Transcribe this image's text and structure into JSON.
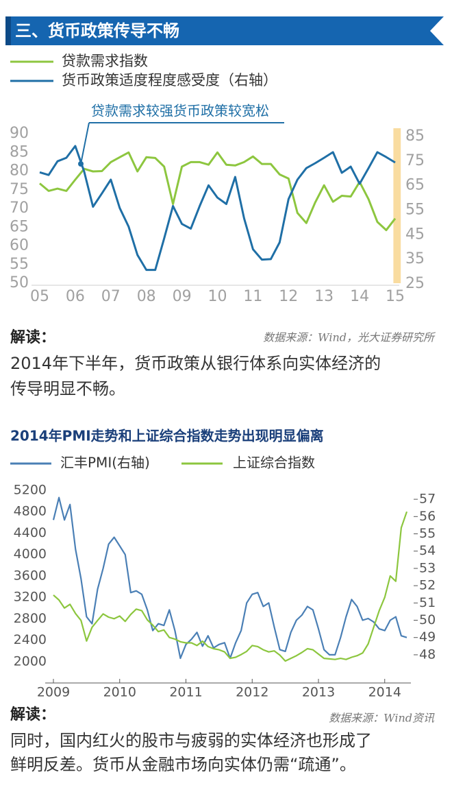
{
  "header": {
    "title": "三、货币政策传导不畅"
  },
  "chart_data": [
    {
      "type": "line",
      "categories": [
        "05",
        null,
        null,
        null,
        "06",
        null,
        null,
        null,
        "07",
        null,
        null,
        null,
        "08",
        null,
        null,
        null,
        "09",
        null,
        null,
        null,
        "10",
        null,
        null,
        null,
        "11",
        null,
        null,
        null,
        "12",
        null,
        null,
        null,
        "13",
        null,
        null,
        null,
        "14",
        null,
        null,
        null,
        "15"
      ],
      "series": [
        {
          "name": "贷款需求指数",
          "color": "#8dc63f",
          "values": [
            76.7,
            74.7,
            75.3,
            74.7,
            77.7,
            80.6,
            79.9,
            80,
            82.4,
            83.7,
            85,
            79.9,
            83.7,
            83.5,
            81.2,
            71.2,
            81.2,
            82.4,
            82.4,
            81.7,
            85,
            81.7,
            81.5,
            82.4,
            83.9,
            81.9,
            81.9,
            79.1,
            78,
            68.8,
            66.1,
            71.6,
            76.2,
            71.8,
            73.4,
            73.2,
            77.1,
            72.5,
            66.4,
            64.2,
            67.3
          ]
        },
        {
          "name": "货币政策适度程度感受度（右轴）",
          "color": "#1f6fa6",
          "axis": "y2",
          "values": [
            70.4,
            69.3,
            74.9,
            76.3,
            81.1,
            70.7,
            56.4,
            61.8,
            67.4,
            55.9,
            48.3,
            36.8,
            30.7,
            30.7,
            43.5,
            56.7,
            49.4,
            47.5,
            56.7,
            65.1,
            60.1,
            57.5,
            68.5,
            51.7,
            39.1,
            34.9,
            35.1,
            41.9,
            59.5,
            67.4,
            72.1,
            74.1,
            76.3,
            78.6,
            70.2,
            72.7,
            65.7,
            72.1,
            78.6,
            76.6,
            74.4
          ]
        }
      ],
      "ylim": [
        50,
        90
      ],
      "yticks": [
        50,
        55,
        60,
        65,
        70,
        75,
        80,
        85,
        90
      ],
      "y2lim": [
        25.3,
        86.1
      ],
      "y2ticks": [
        25,
        35,
        45,
        55,
        65,
        75,
        85
      ],
      "annotation": "贷款需求较强货币政策较宽松",
      "highlight_color": "#f9dca0"
    },
    {
      "type": "line",
      "title": "2014年PMI走势和上证综合指数走势出现明显偏离",
      "categories": [
        "2009",
        null,
        null,
        null,
        null,
        null,
        null,
        null,
        null,
        null,
        null,
        null,
        "2010",
        null,
        null,
        null,
        null,
        null,
        null,
        null,
        null,
        null,
        null,
        null,
        "2011",
        null,
        null,
        null,
        null,
        null,
        null,
        null,
        null,
        null,
        null,
        null,
        "2012",
        null,
        null,
        null,
        null,
        null,
        null,
        null,
        null,
        null,
        null,
        null,
        "2013",
        null,
        null,
        null,
        null,
        null,
        null,
        null,
        null,
        null,
        null,
        null,
        "2014",
        null,
        null,
        null,
        null
      ],
      "series": [
        {
          "name": "汇丰PMI(右轴)",
          "color": "#4a7fb5",
          "axis": "y2",
          "values": [
            55.8,
            57.1,
            55.8,
            56.7,
            54.1,
            52.4,
            50.2,
            49.8,
            51.8,
            53,
            54.4,
            54.8,
            54.3,
            53.8,
            51.6,
            51.7,
            51.5,
            50.6,
            49.4,
            49.8,
            49.7,
            50.6,
            49.4,
            47.8,
            48.6,
            48.9,
            49.3,
            48.5,
            49.1,
            48.4,
            48.6,
            48.7,
            47.8,
            48.7,
            49.4,
            51,
            51.5,
            51.6,
            50.8,
            51,
            49.6,
            48.3,
            48.2,
            49.3,
            50,
            50.3,
            50.8,
            50.6,
            49.5,
            48.3,
            48,
            48,
            49,
            50.2,
            51.2,
            50.8,
            50,
            50.1,
            49.9,
            49.5,
            49.4,
            50,
            50.2,
            49.1,
            49
          ]
        },
        {
          "name": "上证综合指数",
          "color": "#8cc63e",
          "values": [
            3242,
            3150,
            3000,
            3070,
            2896,
            2768,
            2384,
            2640,
            2768,
            2890,
            2830,
            2800,
            2850,
            2750,
            2880,
            2980,
            2950,
            2780,
            2680,
            2560,
            2590,
            2450,
            2420,
            2370,
            2350,
            2350,
            2300,
            2380,
            2280,
            2240,
            2220,
            2180,
            2060,
            2080,
            2130,
            2190,
            2300,
            2280,
            2220,
            2180,
            2200,
            2120,
            2010,
            2060,
            2110,
            2170,
            2240,
            2220,
            2140,
            2060,
            2050,
            2040,
            2060,
            2040,
            2080,
            2110,
            2160,
            2330,
            2640,
            2950,
            3200,
            3600,
            3500,
            4500,
            4800
          ]
        }
      ],
      "ylim": [
        1600,
        5200
      ],
      "yticks": [
        2000,
        2400,
        2800,
        3200,
        3600,
        4000,
        4400,
        4800,
        5200
      ],
      "y2lim": [
        46.37,
        57.52
      ],
      "y2ticks": [
        48,
        49,
        50,
        51,
        52,
        53,
        54,
        55,
        56,
        57
      ]
    }
  ],
  "analysis": [
    {
      "heading": "解读：",
      "source": "数据来源：Wind，光大证券研究所",
      "lines": [
        "2014年下半年，货币政策从银行体系向实体经济的",
        "传导明显不畅。"
      ]
    },
    {
      "heading": "解读：",
      "source": "数据来源：Wind资讯",
      "lines": [
        "同时，国内红火的股市与疲弱的实体经济也形成了",
        "鲜明反差。货币从金融市场向实体仍需“疏通”。"
      ]
    }
  ]
}
